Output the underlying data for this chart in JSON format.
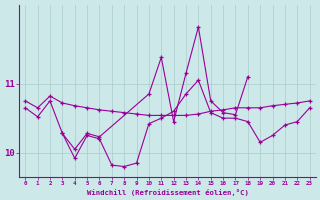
{
  "xlabel": "Windchill (Refroidissement éolien,°C)",
  "series": {
    "s1_x": [
      0,
      1,
      2,
      3,
      4,
      5,
      6,
      7,
      8,
      9,
      10,
      11,
      12,
      13,
      14,
      15,
      16,
      17,
      18,
      19,
      20,
      21,
      22,
      23
    ],
    "s1_y": [
      10.75,
      10.65,
      10.82,
      10.72,
      10.68,
      10.65,
      10.62,
      10.6,
      10.58,
      10.56,
      10.54,
      10.54,
      10.54,
      10.54,
      10.56,
      10.6,
      10.62,
      10.65,
      10.65,
      10.65,
      10.68,
      10.7,
      10.72,
      10.75
    ],
    "s2_x": [
      0,
      1,
      2,
      3,
      4,
      5,
      6,
      7,
      8,
      9,
      10,
      11,
      12,
      13,
      14,
      15,
      16,
      17,
      18,
      19,
      20,
      21,
      22,
      23
    ],
    "s2_y": [
      10.65,
      10.52,
      10.75,
      10.28,
      9.92,
      10.25,
      10.2,
      9.82,
      9.8,
      9.85,
      10.42,
      10.5,
      10.6,
      10.85,
      11.05,
      10.58,
      10.5,
      10.5,
      10.45,
      10.15,
      10.25,
      10.4,
      10.45,
      10.65
    ],
    "s3_x": [
      3,
      4,
      5,
      6,
      10,
      11,
      12,
      13,
      14,
      15,
      16,
      17,
      18
    ],
    "s3_y": [
      10.28,
      10.05,
      10.28,
      10.23,
      10.85,
      11.38,
      10.45,
      11.15,
      11.82,
      10.75,
      10.58,
      10.55,
      11.1
    ]
  },
  "line_color": "#990099",
  "bg_color": "#cce8e8",
  "grid_color": "#aacccc",
  "ylim": [
    9.65,
    12.15
  ],
  "yticks": [
    10,
    11
  ],
  "xlim": [
    -0.5,
    23.5
  ],
  "xticks": [
    0,
    1,
    2,
    3,
    4,
    5,
    6,
    7,
    8,
    9,
    10,
    11,
    12,
    13,
    14,
    15,
    16,
    17,
    18,
    19,
    20,
    21,
    22,
    23
  ]
}
